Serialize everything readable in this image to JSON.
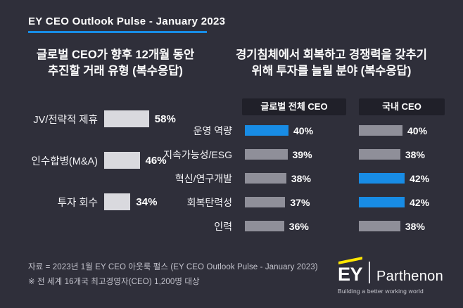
{
  "header": {
    "title": "EY CEO Outlook Pulse - January 2023"
  },
  "colors": {
    "background": "#2F2F3A",
    "accent_blue": "#188CE5",
    "bar_gray_light": "#D9D9DE",
    "bar_gray": "#8F8F99",
    "header_box": "#202029",
    "ey_yellow": "#FFE600"
  },
  "chart_data": [
    {
      "type": "bar",
      "orientation": "horizontal",
      "title": "글로벌 CEO가 향후 12개월 동안 추진할 거래 유형 (복수응답)",
      "title_lines": [
        "글로벌 CEO가 향후 12개월 동안",
        "추진할 거래 유형 (복수응답)"
      ],
      "categories": [
        "JV/전략적 제휴",
        "인수합병(M&A)",
        "투자 회수"
      ],
      "values": [
        58,
        46,
        34
      ],
      "value_labels": [
        "58%",
        "46%",
        "34%"
      ],
      "bar_color": "#D9D9DE",
      "xlim": [
        0,
        100
      ],
      "grid": false,
      "legend": "none"
    },
    {
      "type": "bar",
      "orientation": "horizontal",
      "title": "경기침체에서 회복하고 경쟁력을 갖추기 위해 투자를 늘릴 분야 (복수응답)",
      "title_lines": [
        "경기침체에서 회복하고 경쟁력을 갖추기",
        "위해 투자를 늘릴 분야 (복수응답)"
      ],
      "categories": [
        "운영 역량",
        "지속가능성/ESG",
        "혁신/연구개발",
        "회복탄력성",
        "인력"
      ],
      "series": [
        {
          "name": "글로벌 전체 CEO",
          "values": [
            40,
            39,
            38,
            37,
            36
          ],
          "value_labels": [
            "40%",
            "39%",
            "38%",
            "37%",
            "36%"
          ],
          "colors": [
            "#188CE5",
            "#8F8F99",
            "#8F8F99",
            "#8F8F99",
            "#8F8F99"
          ]
        },
        {
          "name": "국내 CEO",
          "values": [
            40,
            38,
            42,
            42,
            38
          ],
          "value_labels": [
            "40%",
            "38%",
            "42%",
            "42%",
            "38%"
          ],
          "colors": [
            "#8F8F99",
            "#8F8F99",
            "#188CE5",
            "#188CE5",
            "#8F8F99"
          ]
        }
      ],
      "highlight_color": "#188CE5",
      "bar_color": "#8F8F99",
      "xlim": [
        0,
        100
      ],
      "grid": false,
      "legend": "column-headers"
    }
  ],
  "footer": {
    "source_line1": "자료 = 2023년 1월 EY CEO 아웃룩 펄스 (EY CEO Outlook Pulse - January 2023)",
    "source_line2": "※ 전 세계 16개국 최고경영자(CEO) 1,200명 대상"
  },
  "logo": {
    "ey": "EY",
    "parthenon": "Parthenon",
    "tagline": "Building a better working world"
  }
}
